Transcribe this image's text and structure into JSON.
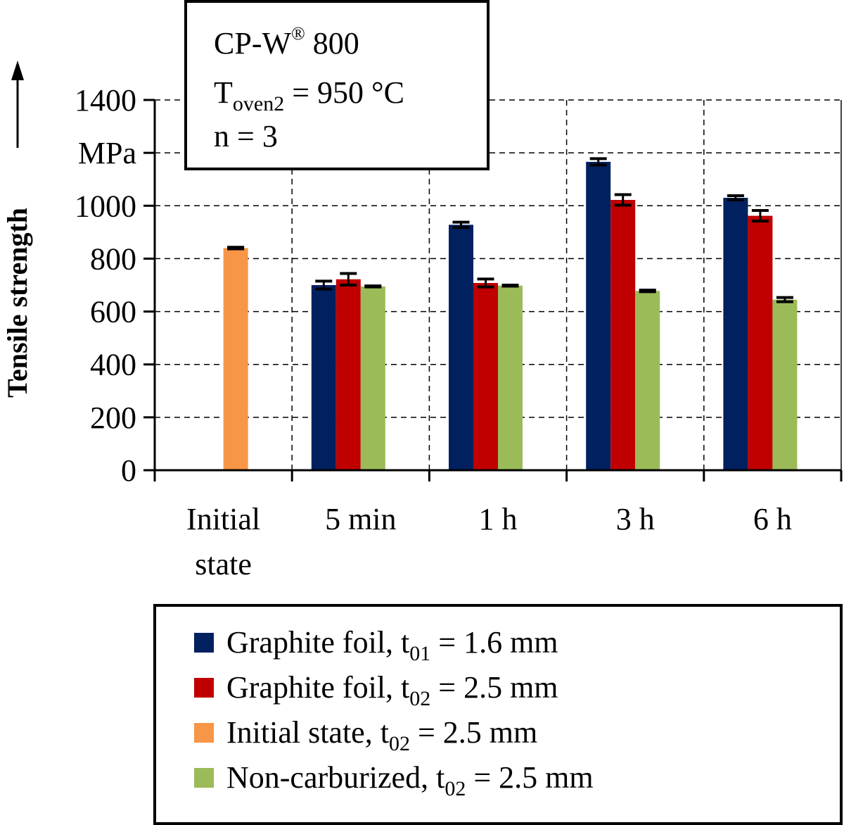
{
  "chart_data": {
    "type": "bar",
    "ylabel": "Tensile strength",
    "yunit": "MPa",
    "ylim": [
      0,
      1400
    ],
    "yticks": [
      0,
      200,
      400,
      600,
      800,
      1000,
      1400
    ],
    "grid": true,
    "categories": [
      {
        "line1": "Initial",
        "line2": "state"
      },
      {
        "line1": "5 min",
        "line2": ""
      },
      {
        "line1": "1 h",
        "line2": ""
      },
      {
        "line1": "3 h",
        "line2": ""
      },
      {
        "line1": "6 h",
        "line2": ""
      }
    ],
    "series": [
      {
        "key": "s1",
        "name": {
          "pre": "Graphite foil, t",
          "sub": "01",
          "post": " = 1.6 mm"
        },
        "color": "#002060",
        "values": [
          null,
          700,
          928,
          1166,
          1030
        ],
        "errors": [
          null,
          15,
          10,
          12,
          8
        ]
      },
      {
        "key": "s2",
        "name": {
          "pre": "Graphite foil, t",
          "sub": "02",
          "post": " = 2.5 mm"
        },
        "color": "#c00000",
        "values": [
          null,
          722,
          708,
          1022,
          962
        ],
        "errors": [
          null,
          22,
          15,
          20,
          20
        ]
      },
      {
        "key": "s3",
        "name": {
          "pre": "Initial state, t",
          "sub": "02",
          "post": " = 2.5 mm"
        },
        "color": "#f79646",
        "values": [
          840,
          null,
          null,
          null,
          null
        ],
        "errors": [
          3,
          null,
          null,
          null,
          null
        ]
      },
      {
        "key": "s4",
        "name": {
          "pre": "Non-carburized, t",
          "sub": "02",
          "post": " = 2.5 mm"
        },
        "color": "#9bbb59",
        "values": [
          null,
          695,
          698,
          678,
          645
        ],
        "errors": [
          null,
          2,
          2,
          3,
          8
        ]
      }
    ],
    "annotation": {
      "line1": {
        "text": "CP-W",
        "sup": "®",
        "post": " 800"
      },
      "line2": {
        "text": "T",
        "sub": "oven2",
        "post": " = 950 °C"
      },
      "line3": "n = 3"
    },
    "legend_position": "bottom"
  }
}
